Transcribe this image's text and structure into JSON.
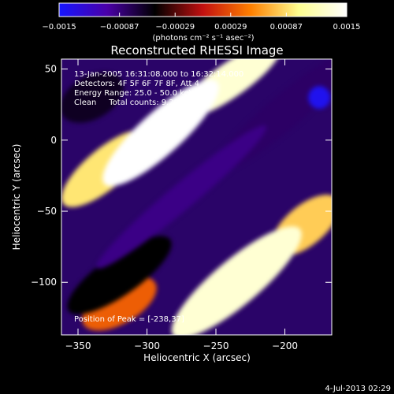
{
  "chart_data": {
    "type": "heatmap",
    "title": "Reconstructed RHESSI Image",
    "xlabel": "Heliocentric X (arcsec)",
    "ylabel": "Heliocentric Y (arcsec)",
    "xlim": [
      -362,
      -166
    ],
    "ylim": [
      -137,
      57
    ],
    "x_ticks": [
      -350,
      -300,
      -250,
      -200
    ],
    "x_tick_labels": [
      "−350",
      "−300",
      "−250",
      "−200"
    ],
    "y_ticks": [
      50,
      0,
      -50,
      -100
    ],
    "y_tick_labels": [
      "50",
      "0",
      "−50",
      "−100"
    ],
    "colorbar": {
      "range": [
        -0.0015,
        0.0015
      ],
      "ticks": [
        -0.0015,
        -0.00087,
        -0.00029,
        0.00029,
        0.00087,
        0.0015
      ],
      "tick_labels": [
        "−0.0015",
        "−0.00087",
        "−0.00029",
        "0.00029",
        "0.00087",
        "0.0015"
      ],
      "unit_label": "(photons cm⁻² s⁻¹ asec⁻²)",
      "colors": [
        "#1616ff",
        "#4a00a8",
        "#000000",
        "#c21010",
        "#ff8000",
        "#ffff90",
        "#ffffff"
      ]
    },
    "annotations": [
      "13-Jan-2005 16:31:08.000 to 16:32:14.000",
      "Detectors: 4F 5F 6F 7F 8F, Att 4",
      "Energy Range: 25.0 - 50.0 keV",
      "Clean     Total counts: 9.29e+03"
    ],
    "peak_label": "Position of Peak = [-238,37]",
    "peak_position": [
      -238,
      37
    ],
    "blobs": [
      {
        "x": -290,
        "y": 5,
        "sx": 55,
        "sy": 15,
        "angle": 42,
        "value": 0.0015
      },
      {
        "x": -240,
        "y": 42,
        "sx": 45,
        "sy": 12,
        "angle": 35,
        "value": 0.0013
      },
      {
        "x": -330,
        "y": -20,
        "sx": 40,
        "sy": 14,
        "angle": 40,
        "value": 0.0009
      },
      {
        "x": -235,
        "y": -100,
        "sx": 60,
        "sy": 16,
        "angle": 40,
        "value": 0.0013
      },
      {
        "x": -185,
        "y": -60,
        "sx": 30,
        "sy": 14,
        "angle": 40,
        "value": 0.0008
      },
      {
        "x": -320,
        "y": -115,
        "sx": 30,
        "sy": 14,
        "angle": 30,
        "value": 0.00035
      },
      {
        "x": -275,
        "y": -40,
        "sx": 80,
        "sy": 9,
        "angle": 40,
        "value": -0.0009
      },
      {
        "x": -200,
        "y": 20,
        "sx": 70,
        "sy": 12,
        "angle": 40,
        "value": -0.0008
      },
      {
        "x": -320,
        "y": -95,
        "sx": 45,
        "sy": 14,
        "angle": 35,
        "value": -0.0005
      },
      {
        "x": -340,
        "y": 30,
        "sx": 25,
        "sy": 15,
        "angle": 30,
        "value": -0.0006
      },
      {
        "x": -175,
        "y": 30,
        "sx": 8,
        "sy": 8,
        "angle": 0,
        "value": -0.0014
      }
    ]
  },
  "footer": {
    "date": "4-Jul-2013 02:29"
  }
}
